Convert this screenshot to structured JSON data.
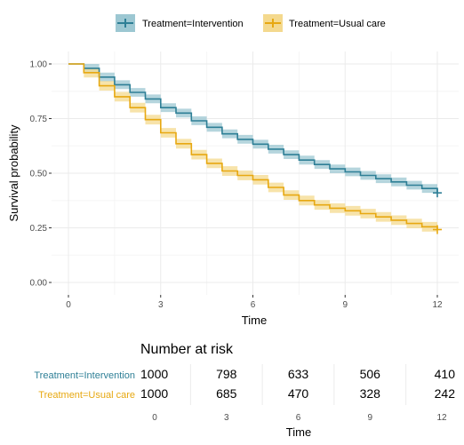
{
  "colors": {
    "intervention": "#2E7F96",
    "intervention_band": "#9CC7D2",
    "usual": "#E7A811",
    "usual_band": "#F4D98E",
    "grid_major": "#EBEBEB",
    "grid_minor": "#F5F5F5"
  },
  "chart_data": {
    "type": "line",
    "subtype": "kaplan-meier survival",
    "xlabel": "Time",
    "ylabel": "Survival probability",
    "xlim": [
      0,
      12
    ],
    "ylim": [
      0,
      1
    ],
    "x_ticks": [
      "0",
      "3",
      "6",
      "9",
      "12"
    ],
    "y_ticks": [
      "0.00",
      "0.25",
      "0.50",
      "0.75",
      "1.00"
    ],
    "legend_position": "top",
    "grid": true,
    "series": [
      {
        "name": "Treatment=Intervention",
        "x": [
          0,
          0.5,
          1,
          1.5,
          2,
          2.5,
          3,
          3.5,
          4,
          4.5,
          5,
          5.5,
          6,
          6.5,
          7,
          7.5,
          8,
          8.5,
          9,
          9.5,
          10,
          10.5,
          11,
          11.5,
          12
        ],
        "y": [
          1.0,
          0.98,
          0.94,
          0.905,
          0.87,
          0.84,
          0.8,
          0.775,
          0.74,
          0.71,
          0.68,
          0.655,
          0.633,
          0.61,
          0.585,
          0.56,
          0.54,
          0.52,
          0.506,
          0.49,
          0.475,
          0.46,
          0.445,
          0.43,
          0.41
        ],
        "ci_halfwidth": 0.02
      },
      {
        "name": "Treatment=Usual care",
        "x": [
          0,
          0.5,
          1,
          1.5,
          2,
          2.5,
          3,
          3.5,
          4,
          4.5,
          5,
          5.5,
          6,
          6.5,
          7,
          7.5,
          8,
          8.5,
          9,
          9.5,
          10,
          10.5,
          11,
          11.5,
          12
        ],
        "y": [
          1.0,
          0.96,
          0.9,
          0.85,
          0.8,
          0.745,
          0.685,
          0.635,
          0.585,
          0.545,
          0.51,
          0.49,
          0.47,
          0.435,
          0.4,
          0.375,
          0.355,
          0.34,
          0.328,
          0.315,
          0.3,
          0.285,
          0.27,
          0.255,
          0.242
        ],
        "ci_halfwidth": 0.022
      }
    ],
    "risk_table": {
      "title": "Number at risk",
      "xlabel": "Time",
      "times": [
        "0",
        "3",
        "6",
        "9",
        "12"
      ],
      "rows": [
        {
          "label": "Treatment=Intervention",
          "values": [
            "1000",
            "798",
            "633",
            "506",
            "410"
          ]
        },
        {
          "label": "Treatment=Usual care",
          "values": [
            "1000",
            "685",
            "470",
            "328",
            "242"
          ]
        }
      ]
    }
  }
}
